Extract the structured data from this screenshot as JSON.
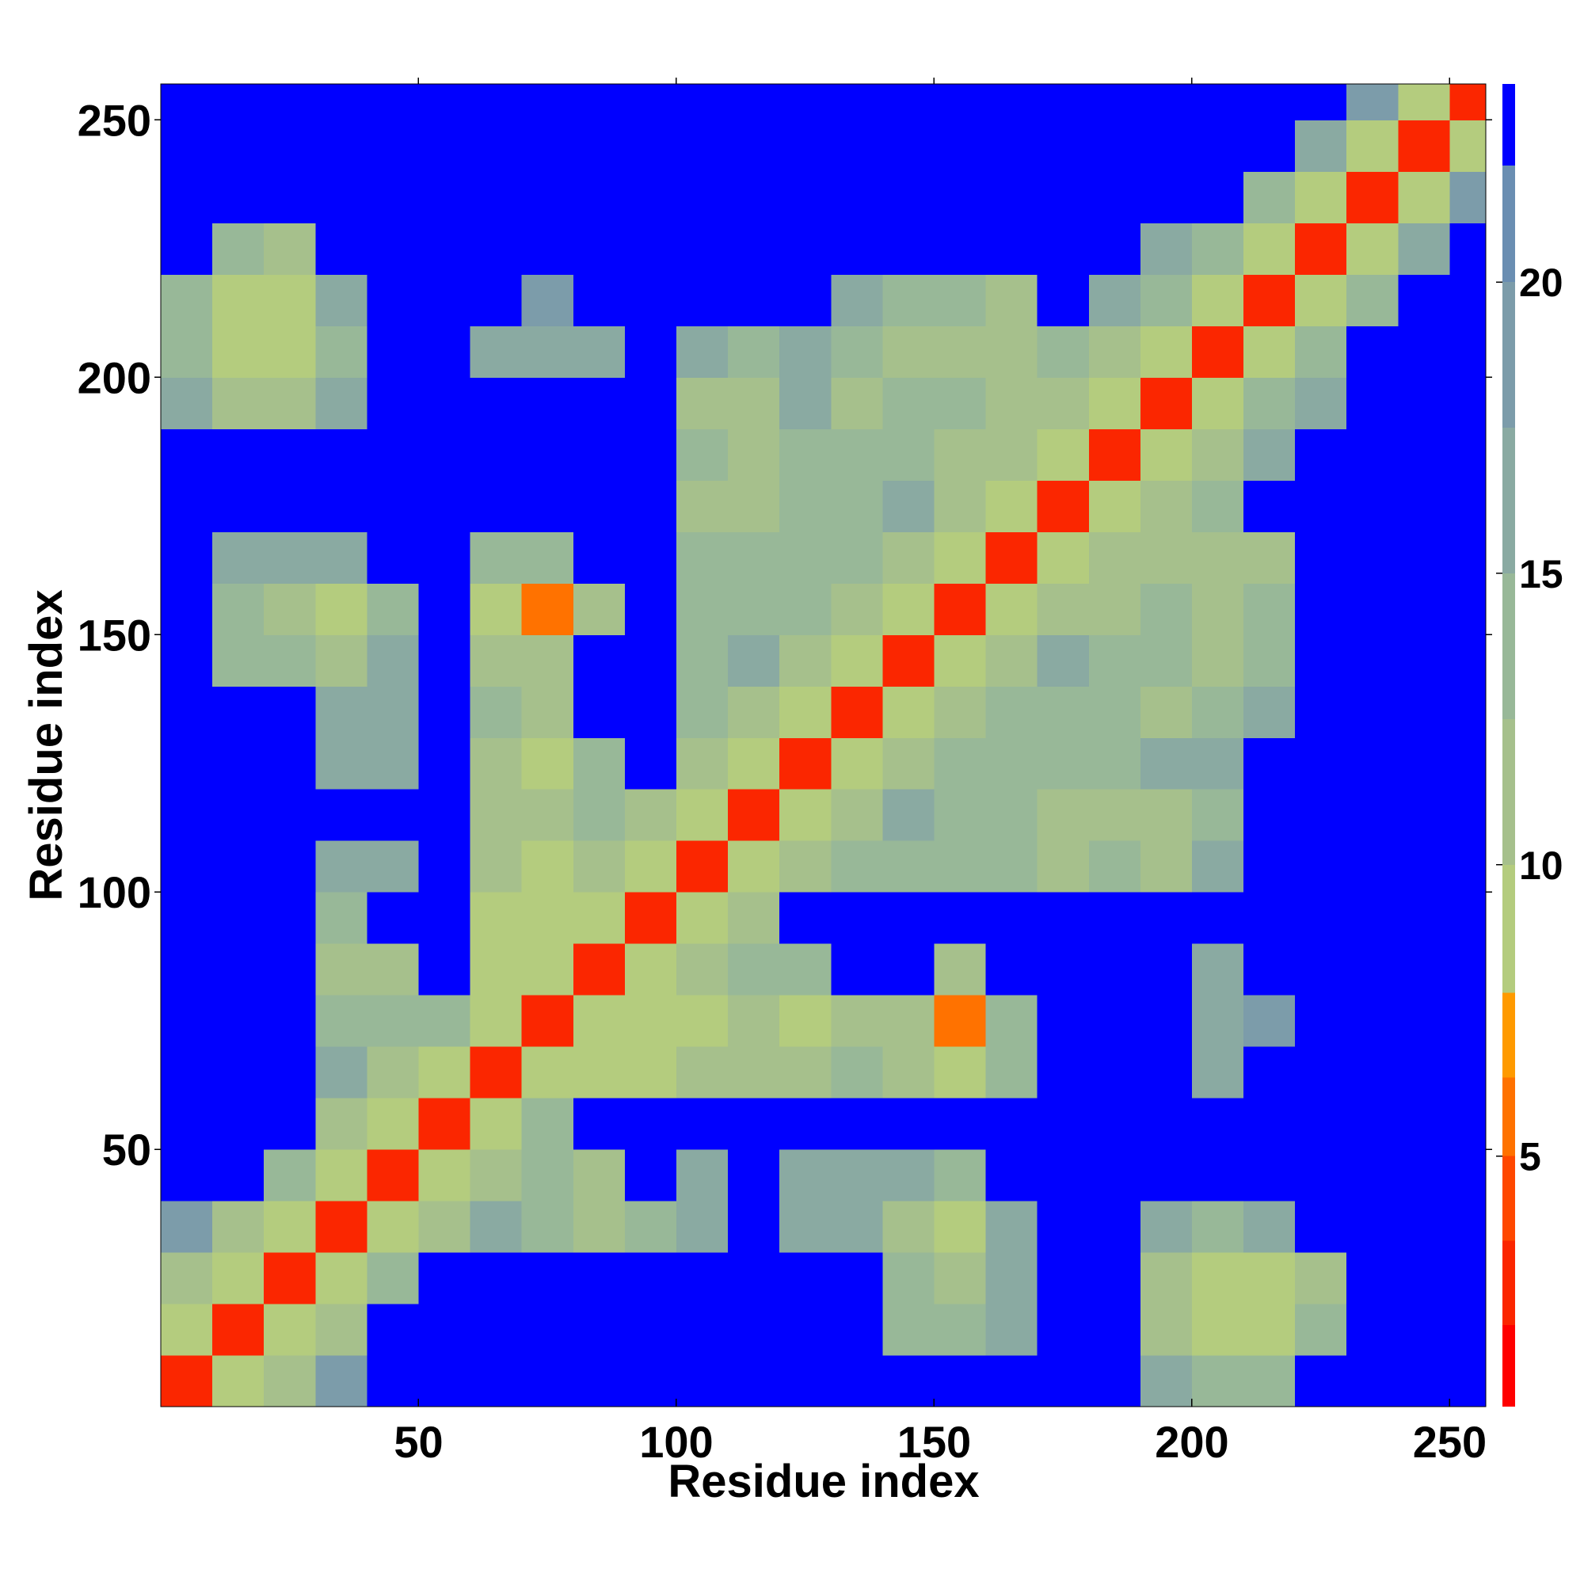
{
  "chart_data": {
    "type": "heatmap",
    "x_label": "Residue index",
    "y_label": "Residue index",
    "xlim": [
      0,
      257
    ],
    "ylim": [
      0,
      257
    ],
    "xticks": [
      50,
      100,
      150,
      200,
      250
    ],
    "yticks": [
      50,
      100,
      150,
      200,
      250
    ],
    "xbins": [
      0,
      10,
      20,
      30,
      40,
      50,
      60,
      70,
      80,
      90,
      100,
      110,
      120,
      130,
      140,
      150,
      160,
      170,
      180,
      190,
      200,
      210,
      220,
      230,
      240,
      250,
      257
    ],
    "ybins": [
      0,
      10,
      20,
      30,
      40,
      50,
      60,
      70,
      80,
      90,
      100,
      110,
      120,
      130,
      140,
      150,
      160,
      170,
      180,
      190,
      200,
      210,
      220,
      230,
      240,
      250,
      257
    ],
    "clim": [
      0.7,
      23.4
    ],
    "cticks": [
      5,
      10,
      15,
      20
    ],
    "colorscale": [
      {
        "value": 0.7,
        "color": "#ff0000"
      },
      {
        "value": 2.1,
        "color": "#fb2600"
      },
      {
        "value": 3.55,
        "color": "#ff4800"
      },
      {
        "value": 5,
        "color": "#ff7200"
      },
      {
        "value": 6.35,
        "color": "#ff9a00"
      },
      {
        "value": 7.8,
        "color": "#b4cc7e"
      },
      {
        "value": 10,
        "color": "#a6c08c"
      },
      {
        "value": 12.5,
        "color": "#98b898"
      },
      {
        "value": 15,
        "color": "#8aaaa2"
      },
      {
        "value": 17.5,
        "color": "#7c9caa"
      },
      {
        "value": 20,
        "color": "#6a8eb2"
      },
      {
        "value": 22,
        "color": "#0000ff"
      }
    ],
    "values": [
      [
        3,
        9,
        12,
        18,
        23,
        23,
        23,
        23,
        23,
        23,
        23,
        23,
        23,
        23,
        23,
        23,
        23,
        23,
        23,
        15,
        14,
        13,
        23,
        23,
        23,
        23
      ],
      [
        9,
        3,
        9,
        12,
        23,
        23,
        23,
        23,
        23,
        23,
        23,
        23,
        23,
        23,
        14,
        13,
        15,
        23,
        23,
        11,
        8,
        9,
        13,
        23,
        23,
        23
      ],
      [
        12,
        9,
        3,
        9,
        14,
        23,
        23,
        23,
        23,
        23,
        23,
        23,
        23,
        23,
        14,
        12,
        15,
        23,
        23,
        12,
        9,
        8,
        12,
        23,
        23,
        23
      ],
      [
        18,
        12,
        9,
        3,
        9,
        10,
        15,
        14,
        11,
        14,
        16,
        23,
        15,
        15,
        12,
        8,
        16,
        23,
        23,
        15,
        14,
        15,
        23,
        23,
        23,
        23
      ],
      [
        23,
        23,
        14,
        9,
        3,
        9,
        11,
        13,
        12,
        23,
        17,
        23,
        16,
        17,
        15,
        14,
        23,
        23,
        23,
        23,
        23,
        23,
        23,
        23,
        23,
        23
      ],
      [
        23,
        23,
        23,
        10,
        9,
        3,
        9,
        13,
        23,
        23,
        23,
        23,
        23,
        23,
        23,
        23,
        23,
        23,
        23,
        23,
        23,
        23,
        23,
        23,
        23,
        23
      ],
      [
        23,
        23,
        23,
        15,
        11,
        9,
        3,
        9,
        8,
        9,
        12,
        12,
        12,
        14,
        12,
        8,
        14,
        23,
        23,
        23,
        16,
        23,
        23,
        23,
        23,
        23
      ],
      [
        23,
        23,
        23,
        14,
        13,
        13,
        9,
        3,
        9,
        8,
        8,
        10,
        9,
        12,
        11,
        6,
        13,
        23,
        23,
        23,
        16,
        18,
        23,
        23,
        23,
        23
      ],
      [
        23,
        23,
        23,
        11,
        12,
        23,
        8,
        9,
        3,
        9,
        10,
        14,
        14,
        23,
        23,
        12,
        23,
        23,
        23,
        23,
        17,
        23,
        23,
        23,
        23,
        23
      ],
      [
        23,
        23,
        23,
        14,
        23,
        23,
        9,
        8,
        9,
        3,
        9,
        12,
        23,
        23,
        23,
        23,
        23,
        23,
        23,
        23,
        23,
        23,
        23,
        23,
        23,
        23
      ],
      [
        23,
        23,
        23,
        16,
        17,
        23,
        12,
        8,
        10,
        9,
        3,
        9,
        12,
        14,
        13,
        14,
        14,
        12,
        13,
        12,
        15,
        23,
        23,
        23,
        23,
        23
      ],
      [
        23,
        23,
        23,
        23,
        23,
        23,
        12,
        10,
        14,
        12,
        9,
        3,
        9,
        12,
        15,
        13,
        13,
        11,
        12,
        12,
        14,
        23,
        23,
        23,
        23,
        23
      ],
      [
        23,
        23,
        23,
        15,
        16,
        23,
        12,
        9,
        14,
        23,
        12,
        9,
        3,
        9,
        12,
        14,
        13,
        14,
        14,
        15,
        15,
        23,
        23,
        23,
        23,
        23
      ],
      [
        23,
        23,
        23,
        15,
        17,
        23,
        14,
        12,
        23,
        23,
        14,
        12,
        9,
        3,
        9,
        11,
        14,
        14,
        13,
        12,
        13,
        15,
        23,
        23,
        23,
        23
      ],
      [
        23,
        14,
        14,
        12,
        15,
        23,
        12,
        11,
        23,
        23,
        13,
        15,
        12,
        9,
        3,
        9,
        12,
        15,
        13,
        13,
        11,
        14,
        23,
        23,
        23,
        23
      ],
      [
        23,
        13,
        12,
        8,
        14,
        23,
        8,
        6,
        12,
        23,
        14,
        13,
        14,
        11,
        9,
        3,
        9,
        12,
        12,
        14,
        11,
        13,
        23,
        23,
        23,
        23
      ],
      [
        23,
        15,
        15,
        16,
        23,
        23,
        14,
        13,
        23,
        23,
        14,
        13,
        13,
        14,
        12,
        9,
        3,
        9,
        12,
        12,
        10,
        12,
        23,
        23,
        23,
        23
      ],
      [
        23,
        23,
        23,
        23,
        23,
        23,
        23,
        23,
        23,
        23,
        12,
        11,
        14,
        14,
        15,
        12,
        9,
        3,
        9,
        12,
        14,
        23,
        23,
        23,
        23,
        23
      ],
      [
        23,
        23,
        23,
        23,
        23,
        23,
        23,
        23,
        23,
        23,
        13,
        12,
        14,
        13,
        13,
        12,
        12,
        9,
        3,
        9,
        12,
        17,
        23,
        23,
        23,
        23
      ],
      [
        15,
        11,
        12,
        15,
        23,
        23,
        23,
        23,
        23,
        23,
        12,
        12,
        15,
        12,
        13,
        14,
        12,
        12,
        9,
        3,
        9,
        13,
        17,
        23,
        23,
        23
      ],
      [
        14,
        8,
        9,
        14,
        23,
        23,
        16,
        16,
        17,
        23,
        15,
        14,
        15,
        13,
        11,
        11,
        10,
        14,
        12,
        9,
        3,
        9,
        13,
        23,
        23,
        23
      ],
      [
        13,
        9,
        8,
        15,
        23,
        23,
        23,
        18,
        23,
        23,
        23,
        23,
        23,
        15,
        14,
        13,
        12,
        23,
        17,
        13,
        9,
        3,
        9,
        14,
        23,
        23
      ],
      [
        23,
        13,
        12,
        23,
        23,
        23,
        23,
        23,
        23,
        23,
        23,
        23,
        23,
        23,
        23,
        23,
        23,
        23,
        23,
        17,
        13,
        9,
        3,
        9,
        15,
        23
      ],
      [
        23,
        23,
        23,
        23,
        23,
        23,
        23,
        23,
        23,
        23,
        23,
        23,
        23,
        23,
        23,
        23,
        23,
        23,
        23,
        23,
        23,
        14,
        9,
        3,
        9,
        18
      ],
      [
        23,
        23,
        23,
        23,
        23,
        23,
        23,
        23,
        23,
        23,
        23,
        23,
        23,
        23,
        23,
        23,
        23,
        23,
        23,
        23,
        23,
        23,
        15,
        9,
        3,
        9
      ],
      [
        23,
        23,
        23,
        23,
        23,
        23,
        23,
        23,
        23,
        23,
        23,
        23,
        23,
        23,
        23,
        23,
        23,
        23,
        23,
        23,
        23,
        23,
        23,
        18,
        9,
        3
      ]
    ]
  }
}
